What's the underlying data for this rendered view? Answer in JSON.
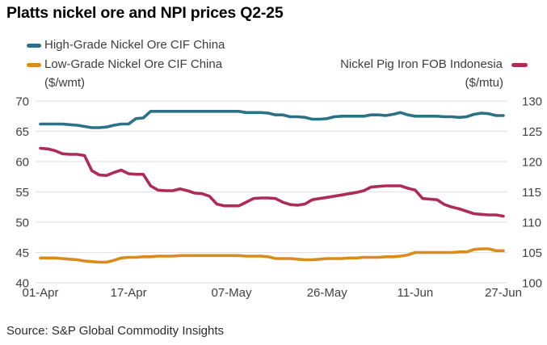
{
  "title": "Platts nickel ore and NPI prices Q2-25",
  "source": "Source: S&P Global Commodity Insights",
  "legend": {
    "high_grade": "High-Grade Nickel Ore CIF China",
    "low_grade": "Low-Grade Nickel Ore CIF China",
    "npi": "Nickel Pig Iron FOB Indonesia"
  },
  "axis_units": {
    "left": "($/wmt)",
    "right": "($/mtu)"
  },
  "colors": {
    "high_grade": "#2B7286",
    "low_grade": "#DA8B1D",
    "npi": "#AE2A58",
    "grid": "#E3E3E3",
    "axis_text": "#414141"
  },
  "chart_data": {
    "type": "line",
    "title": "Platts nickel ore and NPI prices Q2-25",
    "legend_position": "top",
    "grid": "horizontal",
    "x_tick_labels": [
      "01-Apr",
      "17-Apr",
      "07-May",
      "26-May",
      "11-Jun",
      "27-Jun"
    ],
    "x_tick_indices": [
      0,
      12,
      26,
      39,
      51,
      63
    ],
    "left_axis": {
      "label": "($/wmt)",
      "ticks": [
        70,
        65,
        60,
        55,
        50,
        45,
        40
      ],
      "range": [
        40,
        70
      ]
    },
    "right_axis": {
      "label": "($/mtu)",
      "ticks": [
        130,
        125,
        120,
        115,
        110,
        105,
        100
      ],
      "range": [
        100,
        130
      ]
    },
    "dates": [
      "01-Apr",
      "02-Apr",
      "03-Apr",
      "04-Apr",
      "07-Apr",
      "08-Apr",
      "09-Apr",
      "10-Apr",
      "11-Apr",
      "14-Apr",
      "15-Apr",
      "16-Apr",
      "17-Apr",
      "18-Apr",
      "21-Apr",
      "22-Apr",
      "23-Apr",
      "24-Apr",
      "25-Apr",
      "28-Apr",
      "29-Apr",
      "30-Apr",
      "01-May",
      "02-May",
      "05-May",
      "06-May",
      "07-May",
      "08-May",
      "09-May",
      "12-May",
      "13-May",
      "14-May",
      "15-May",
      "16-May",
      "19-May",
      "20-May",
      "21-May",
      "22-May",
      "23-May",
      "26-May",
      "27-May",
      "28-May",
      "29-May",
      "30-May",
      "02-Jun",
      "03-Jun",
      "04-Jun",
      "05-Jun",
      "06-Jun",
      "09-Jun",
      "10-Jun",
      "11-Jun",
      "12-Jun",
      "13-Jun",
      "16-Jun",
      "17-Jun",
      "18-Jun",
      "19-Jun",
      "20-Jun",
      "23-Jun",
      "24-Jun",
      "25-Jun",
      "26-Jun",
      "27-Jun"
    ],
    "series": [
      {
        "name": "High-Grade Nickel Ore CIF China",
        "axis": "left",
        "unit": "$/wmt",
        "color_key": "high_grade",
        "values": [
          66.2,
          66.2,
          66.2,
          66.2,
          66.1,
          66.0,
          65.8,
          65.6,
          65.6,
          65.7,
          66.0,
          66.2,
          66.2,
          67.1,
          67.2,
          68.3,
          68.3,
          68.3,
          68.3,
          68.3,
          68.3,
          68.3,
          68.3,
          68.3,
          68.3,
          68.3,
          68.3,
          68.3,
          68.1,
          68.1,
          68.1,
          68.0,
          67.7,
          67.7,
          67.4,
          67.4,
          67.3,
          67.0,
          67.0,
          67.1,
          67.4,
          67.5,
          67.5,
          67.5,
          67.5,
          67.7,
          67.7,
          67.6,
          67.8,
          68.1,
          67.7,
          67.5,
          67.5,
          67.5,
          67.5,
          67.4,
          67.4,
          67.3,
          67.4,
          67.8,
          68.0,
          67.9,
          67.6,
          67.6
        ]
      },
      {
        "name": "Low-Grade Nickel Ore CIF China",
        "axis": "left",
        "unit": "$/wmt",
        "color_key": "low_grade",
        "values": [
          44.1,
          44.1,
          44.1,
          44.0,
          43.9,
          43.8,
          43.6,
          43.5,
          43.4,
          43.4,
          43.7,
          44.1,
          44.2,
          44.2,
          44.3,
          44.3,
          44.4,
          44.4,
          44.4,
          44.5,
          44.5,
          44.5,
          44.5,
          44.5,
          44.5,
          44.5,
          44.5,
          44.5,
          44.4,
          44.4,
          44.4,
          44.3,
          44.0,
          44.0,
          44.0,
          43.9,
          43.8,
          43.8,
          43.9,
          44.0,
          44.0,
          44.0,
          44.1,
          44.1,
          44.2,
          44.2,
          44.2,
          44.3,
          44.3,
          44.4,
          44.6,
          45.0,
          45.0,
          45.0,
          45.0,
          45.0,
          45.0,
          45.1,
          45.1,
          45.5,
          45.6,
          45.6,
          45.3,
          45.3
        ]
      },
      {
        "name": "Nickel Pig Iron FOB Indonesia",
        "axis": "right",
        "unit": "$/mtu",
        "color_key": "npi",
        "values": [
          122.2,
          122.1,
          121.8,
          121.3,
          121.2,
          121.2,
          121.0,
          118.5,
          117.8,
          117.7,
          118.2,
          118.6,
          118.0,
          117.9,
          117.9,
          116.0,
          115.3,
          115.2,
          115.2,
          115.5,
          115.2,
          114.8,
          114.7,
          114.3,
          113.0,
          112.7,
          112.7,
          112.7,
          113.3,
          113.9,
          114.0,
          114.0,
          113.9,
          113.3,
          112.9,
          112.8,
          113.0,
          113.7,
          113.9,
          114.1,
          114.3,
          114.5,
          114.7,
          114.9,
          115.2,
          115.8,
          115.9,
          116.0,
          116.0,
          116.0,
          115.6,
          115.3,
          113.9,
          113.8,
          113.7,
          112.9,
          112.5,
          112.2,
          111.8,
          111.4,
          111.3,
          111.2,
          111.2,
          111.0
        ]
      }
    ]
  }
}
